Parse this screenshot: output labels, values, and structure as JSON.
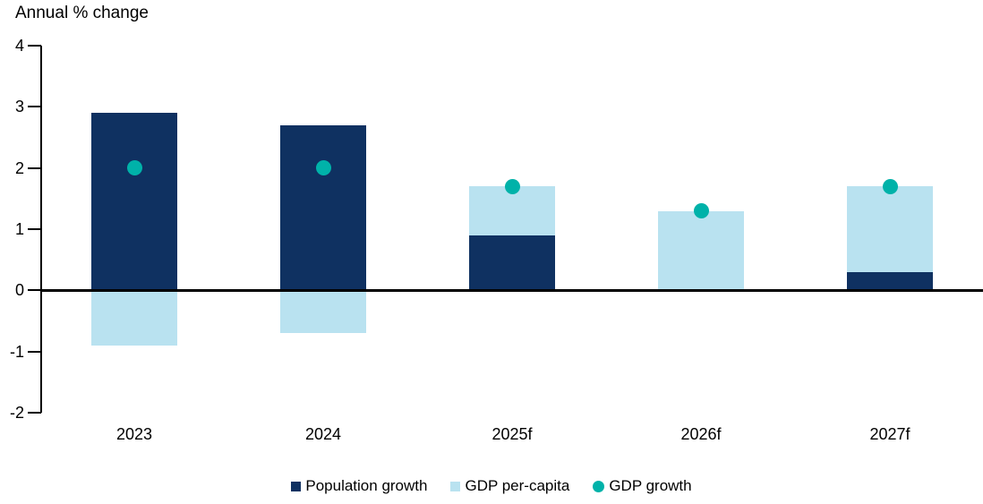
{
  "title": "Annual % change",
  "colors": {
    "population_growth": "#0F3161",
    "gdp_per_capita": "#B9E2F0",
    "gdp_growth": "#00B2A9",
    "axis": "#000000"
  },
  "chart_data": {
    "type": "bar",
    "stacked": true,
    "title": "Annual % change",
    "xlabel": "",
    "ylabel": "Annual % change",
    "categories": [
      "2023",
      "2024",
      "2025f",
      "2026f",
      "2027f"
    ],
    "series": [
      {
        "name": "Population growth",
        "type": "bar",
        "color_key": "population_growth",
        "values": [
          2.9,
          2.7,
          0.9,
          0.0,
          0.3
        ]
      },
      {
        "name": "GDP per-capita",
        "type": "bar",
        "color_key": "gdp_per_capita",
        "values": [
          -0.9,
          -0.7,
          0.8,
          1.3,
          1.4
        ]
      },
      {
        "name": "GDP growth",
        "type": "point",
        "color_key": "gdp_growth",
        "values": [
          2.0,
          2.0,
          1.7,
          1.3,
          1.7
        ]
      }
    ],
    "ylim": [
      -2,
      4
    ],
    "yticks": [
      4,
      3,
      2,
      1,
      0,
      -1,
      -2
    ],
    "grid": false,
    "zero_line": true,
    "legend_position": "bottom"
  }
}
